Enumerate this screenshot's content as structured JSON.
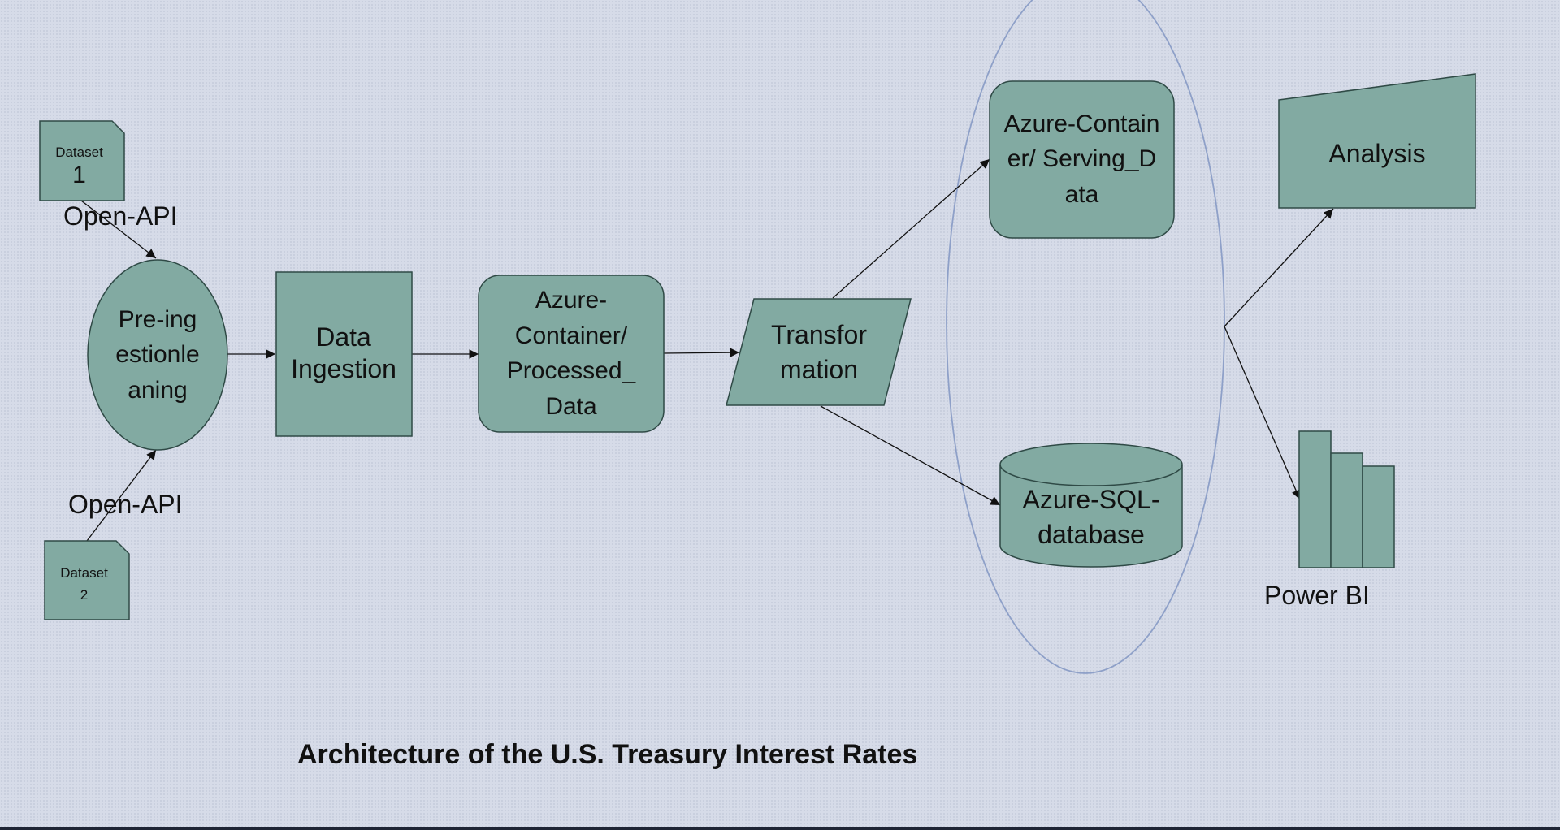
{
  "title": "Architecture of the U.S. Treasury Interest Rates",
  "colors": {
    "node_fill": "#82aaa2",
    "node_stroke": "#2f4a46",
    "ellipse_stroke": "#8ea0c8",
    "background": "#d6dbe8"
  },
  "nodes": {
    "dataset1": {
      "line1": "Dataset",
      "line2": "1"
    },
    "dataset2": {
      "line1": "Dataset",
      "line2": "2"
    },
    "preingestion": "Pre-ingestionleaning",
    "ingestion": "Data Ingestion",
    "processed": "Azure-Container/ Processed_ Data",
    "transformation": "Transformation",
    "serving": "Azure-Container/ Serving_Data",
    "sqldb": "Azure-SQL- database",
    "analysis": "Analysis",
    "powerbi": "Power BI"
  },
  "edge_labels": {
    "api1": "Open-API",
    "api2": "Open-API"
  }
}
